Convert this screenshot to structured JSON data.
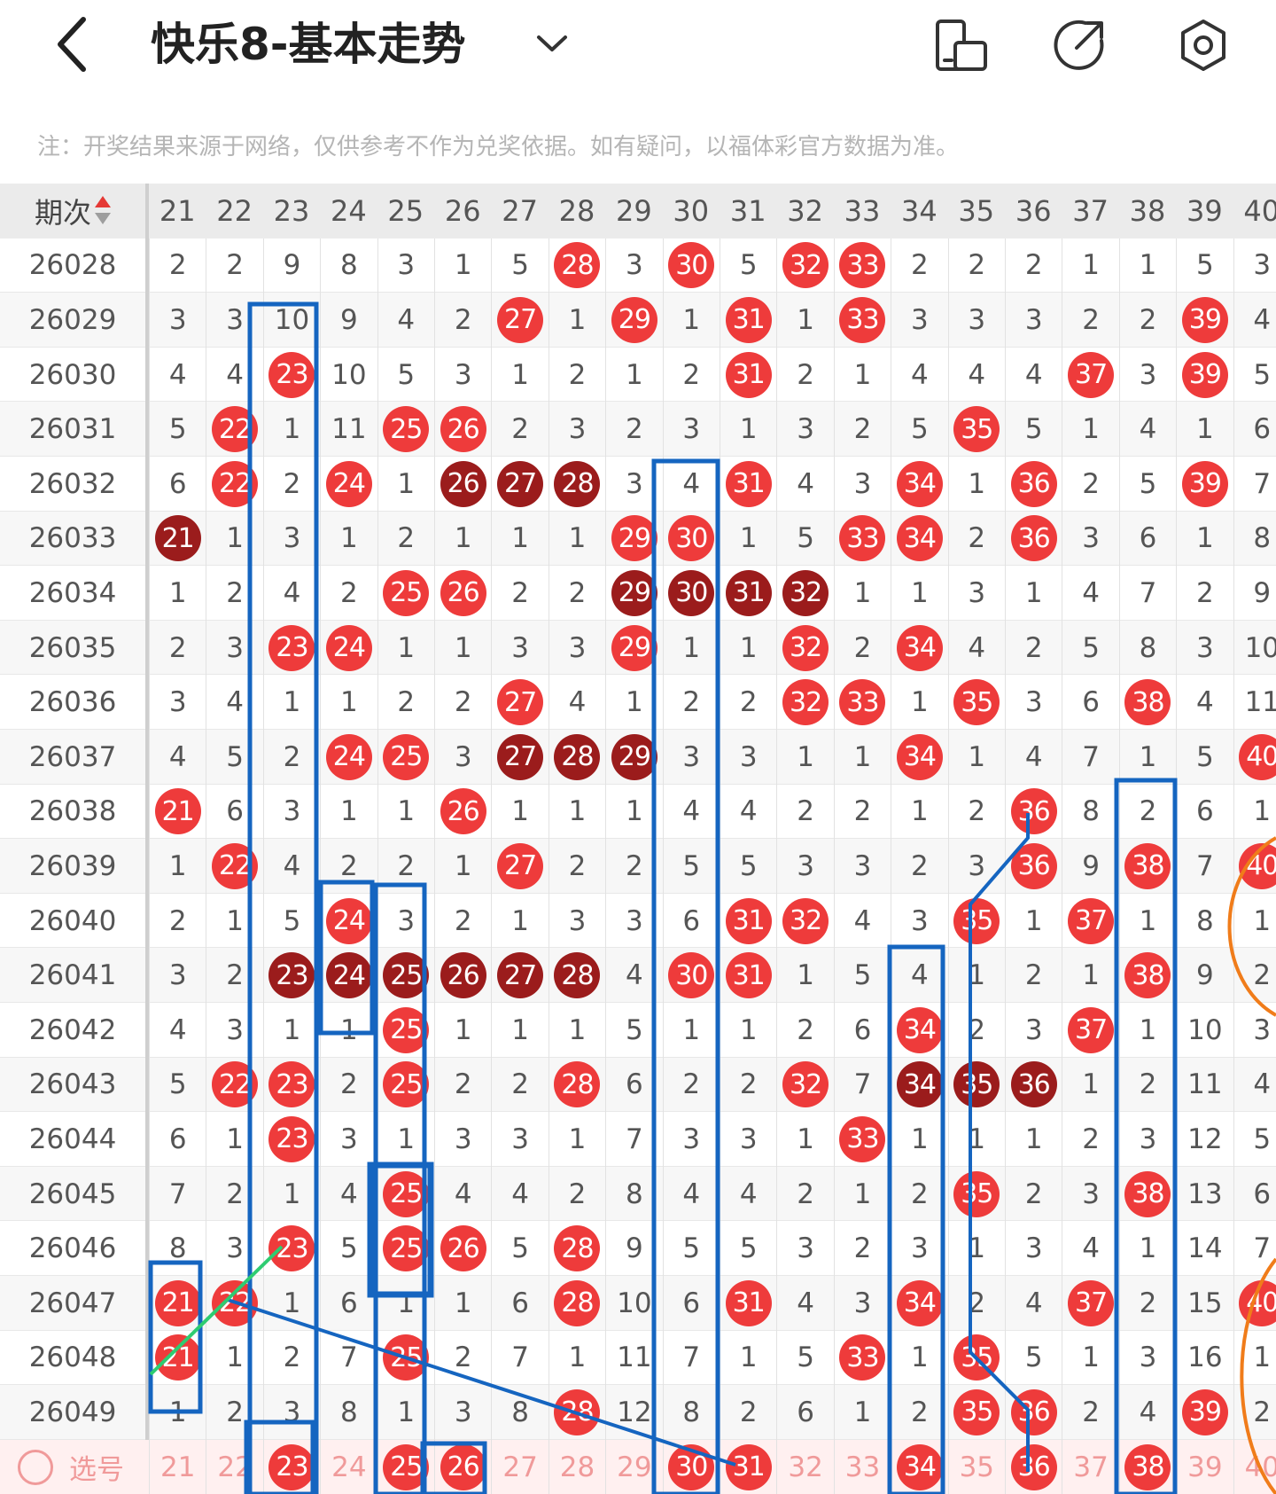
{
  "header": {
    "title": "快乐8-基本走势",
    "icons": [
      "back-icon",
      "chevron-down-icon",
      "phone-rotate-icon",
      "share-icon",
      "settings-icon"
    ]
  },
  "notice": "注：开奖结果来源于网络，仅供参考不作为兑奖依据。如有疑问，以福体彩官方数据为准。",
  "table": {
    "issue_header": "期次",
    "columns": [
      "21",
      "22",
      "23",
      "24",
      "25",
      "26",
      "27",
      "28",
      "29",
      "30",
      "31",
      "32",
      "33",
      "34",
      "35",
      "36",
      "37",
      "38",
      "39",
      "40"
    ],
    "rows": [
      {
        "issue": "26028",
        "cells": [
          "2",
          "2",
          "9",
          "8",
          "3",
          "1",
          "5",
          "28",
          "3",
          "30",
          "5",
          "32",
          "33",
          "2",
          "2",
          "2",
          "1",
          "1",
          "5",
          "3"
        ]
      },
      {
        "issue": "26029",
        "cells": [
          "3",
          "3",
          "10",
          "9",
          "4",
          "2",
          "27",
          "1",
          "29",
          "1",
          "31",
          "1",
          "33",
          "3",
          "3",
          "3",
          "2",
          "2",
          "39",
          "4"
        ]
      },
      {
        "issue": "26030",
        "cells": [
          "4",
          "4",
          "23",
          "10",
          "5",
          "3",
          "1",
          "2",
          "1",
          "2",
          "31",
          "2",
          "1",
          "4",
          "4",
          "4",
          "37",
          "3",
          "39",
          "5"
        ]
      },
      {
        "issue": "26031",
        "cells": [
          "5",
          "22",
          "1",
          "11",
          "25",
          "26",
          "2",
          "3",
          "2",
          "3",
          "1",
          "3",
          "2",
          "5",
          "35",
          "5",
          "1",
          "4",
          "1",
          "6"
        ]
      },
      {
        "issue": "26032",
        "cells": [
          "6",
          "22",
          "2",
          "24",
          "1",
          "26",
          "27",
          "28",
          "3",
          "4",
          "31",
          "4",
          "3",
          "34",
          "1",
          "36",
          "2",
          "5",
          "39",
          "7"
        ]
      },
      {
        "issue": "26033",
        "cells": [
          "21",
          "1",
          "3",
          "1",
          "2",
          "1",
          "1",
          "1",
          "29",
          "30",
          "1",
          "5",
          "33",
          "34",
          "2",
          "36",
          "3",
          "6",
          "1",
          "8"
        ]
      },
      {
        "issue": "26034",
        "cells": [
          "1",
          "2",
          "4",
          "2",
          "25",
          "26",
          "2",
          "2",
          "29",
          "30",
          "31",
          "32",
          "1",
          "1",
          "3",
          "1",
          "4",
          "7",
          "2",
          "9"
        ]
      },
      {
        "issue": "26035",
        "cells": [
          "2",
          "3",
          "23",
          "24",
          "1",
          "1",
          "3",
          "3",
          "29",
          "1",
          "1",
          "32",
          "2",
          "34",
          "4",
          "2",
          "5",
          "8",
          "3",
          "10"
        ]
      },
      {
        "issue": "26036",
        "cells": [
          "3",
          "4",
          "1",
          "1",
          "2",
          "2",
          "27",
          "4",
          "1",
          "2",
          "2",
          "32",
          "33",
          "1",
          "35",
          "3",
          "6",
          "38",
          "4",
          "11"
        ]
      },
      {
        "issue": "26037",
        "cells": [
          "4",
          "5",
          "2",
          "24",
          "25",
          "3",
          "27",
          "28",
          "29",
          "3",
          "3",
          "1",
          "1",
          "34",
          "1",
          "4",
          "7",
          "1",
          "5",
          "40"
        ]
      },
      {
        "issue": "26038",
        "cells": [
          "21",
          "6",
          "3",
          "1",
          "1",
          "26",
          "1",
          "1",
          "1",
          "4",
          "4",
          "2",
          "2",
          "1",
          "2",
          "36",
          "8",
          "2",
          "6",
          "1"
        ]
      },
      {
        "issue": "26039",
        "cells": [
          "1",
          "22",
          "4",
          "2",
          "2",
          "1",
          "27",
          "2",
          "2",
          "5",
          "5",
          "3",
          "3",
          "2",
          "3",
          "36",
          "9",
          "38",
          "7",
          "40"
        ]
      },
      {
        "issue": "26040",
        "cells": [
          "2",
          "1",
          "5",
          "24",
          "3",
          "2",
          "1",
          "3",
          "3",
          "6",
          "31",
          "32",
          "4",
          "3",
          "35",
          "1",
          "37",
          "1",
          "8",
          "1"
        ]
      },
      {
        "issue": "26041",
        "cells": [
          "3",
          "2",
          "23",
          "24",
          "25",
          "26",
          "27",
          "28",
          "4",
          "30",
          "31",
          "1",
          "5",
          "4",
          "1",
          "2",
          "1",
          "38",
          "9",
          "2"
        ]
      },
      {
        "issue": "26042",
        "cells": [
          "4",
          "3",
          "1",
          "1",
          "25",
          "1",
          "1",
          "1",
          "5",
          "1",
          "1",
          "2",
          "6",
          "34",
          "2",
          "3",
          "37",
          "1",
          "10",
          "3"
        ]
      },
      {
        "issue": "26043",
        "cells": [
          "5",
          "22",
          "23",
          "2",
          "25",
          "2",
          "2",
          "28",
          "6",
          "2",
          "2",
          "32",
          "7",
          "34",
          "35",
          "36",
          "1",
          "2",
          "11",
          "4"
        ]
      },
      {
        "issue": "26044",
        "cells": [
          "6",
          "1",
          "23",
          "3",
          "1",
          "3",
          "3",
          "1",
          "7",
          "3",
          "3",
          "1",
          "33",
          "1",
          "1",
          "1",
          "2",
          "3",
          "12",
          "5"
        ]
      },
      {
        "issue": "26045",
        "cells": [
          "7",
          "2",
          "1",
          "4",
          "25",
          "4",
          "4",
          "2",
          "8",
          "4",
          "4",
          "2",
          "1",
          "2",
          "35",
          "2",
          "3",
          "38",
          "13",
          "6"
        ]
      },
      {
        "issue": "26046",
        "cells": [
          "8",
          "3",
          "23",
          "5",
          "25",
          "26",
          "5",
          "28",
          "9",
          "5",
          "5",
          "3",
          "2",
          "3",
          "1",
          "3",
          "4",
          "1",
          "14",
          "7"
        ]
      },
      {
        "issue": "26047",
        "cells": [
          "21",
          "22",
          "1",
          "6",
          "1",
          "1",
          "6",
          "28",
          "10",
          "6",
          "31",
          "4",
          "3",
          "34",
          "2",
          "4",
          "37",
          "2",
          "15",
          "40"
        ]
      },
      {
        "issue": "26048",
        "cells": [
          "21",
          "1",
          "2",
          "7",
          "25",
          "2",
          "7",
          "1",
          "11",
          "7",
          "1",
          "5",
          "33",
          "1",
          "35",
          "5",
          "1",
          "3",
          "16",
          "1"
        ]
      },
      {
        "issue": "26049",
        "cells": [
          "1",
          "2",
          "3",
          "8",
          "1",
          "3",
          "8",
          "28",
          "12",
          "8",
          "2",
          "6",
          "1",
          "2",
          "35",
          "36",
          "2",
          "4",
          "39",
          "2"
        ]
      }
    ],
    "dark_balls": [
      "26032-26",
      "26032-27",
      "26032-28",
      "26033-21",
      "26034-29",
      "26034-30",
      "26034-31",
      "26034-32",
      "26037-27",
      "26037-28",
      "26037-29",
      "26041-23",
      "26041-24",
      "26041-25",
      "26041-26",
      "26041-27",
      "26041-28",
      "26043-34",
      "26043-35",
      "26043-36"
    ],
    "footer": {
      "select_label": "选号",
      "cells": [
        "21",
        "22",
        "23",
        "24",
        "25",
        "26",
        "27",
        "28",
        "29",
        "30",
        "31",
        "32",
        "33",
        "34",
        "35",
        "36",
        "37",
        "38",
        "39",
        "40"
      ],
      "selected": [
        "23",
        "25",
        "26",
        "30",
        "31",
        "34",
        "36",
        "38"
      ]
    }
  },
  "colors": {
    "ball_red": "#ee3b3b",
    "ball_dark": "#9b1c1c",
    "box_blue": "#1565c0",
    "line_green": "#2ecc71",
    "arc_orange": "#f07c1a"
  }
}
